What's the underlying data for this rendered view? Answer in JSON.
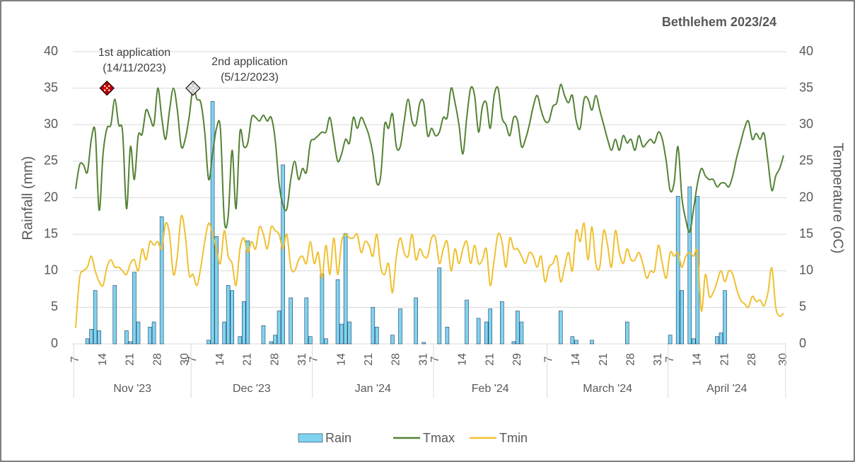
{
  "chart_data": {
    "type": "bar_line",
    "title": "Bethlehem 2023/24",
    "y_label": "Rainfall (mm)",
    "y2_label": "Temperature (oC)",
    "ylim": [
      0,
      40
    ],
    "yticks": [
      0,
      5,
      10,
      15,
      20,
      25,
      30,
      35,
      40
    ],
    "y2lim": [
      0,
      40
    ],
    "y2ticks": [
      0,
      5,
      10,
      15,
      20,
      25,
      30,
      35,
      40
    ],
    "grid": true,
    "legend": "bottom",
    "groups": [
      {
        "label": "Nov '23",
        "categories": [
          "7",
          null,
          null,
          null,
          null,
          null,
          null,
          "14",
          null,
          null,
          null,
          null,
          null,
          null,
          "21",
          null,
          null,
          null,
          null,
          null,
          null,
          "28",
          null,
          null,
          null,
          null,
          null,
          null,
          "30",
          null
        ]
      },
      {
        "label": "Dec '23",
        "categories": [
          "7",
          null,
          null,
          null,
          null,
          null,
          null,
          "14",
          null,
          null,
          null,
          null,
          null,
          null,
          "21",
          null,
          null,
          null,
          null,
          null,
          null,
          "28",
          null,
          null,
          null,
          null,
          null,
          null,
          "31",
          null,
          null
        ]
      },
      {
        "label": "Jan '24",
        "categories": [
          "7",
          null,
          null,
          null,
          null,
          null,
          null,
          "14",
          null,
          null,
          null,
          null,
          null,
          null,
          "21",
          null,
          null,
          null,
          null,
          null,
          null,
          "28",
          null,
          null,
          null,
          null,
          null,
          null,
          "31",
          null,
          null
        ]
      },
      {
        "label": "Feb '24",
        "categories": [
          "7",
          null,
          null,
          null,
          null,
          null,
          null,
          "14",
          null,
          null,
          null,
          null,
          null,
          null,
          "21",
          null,
          null,
          null,
          null,
          null,
          null,
          "29",
          null,
          null,
          null,
          null,
          null,
          null,
          null
        ]
      },
      {
        "label": "March '24",
        "categories": [
          "7",
          null,
          null,
          null,
          null,
          null,
          null,
          "14",
          null,
          null,
          null,
          null,
          null,
          null,
          "21",
          null,
          null,
          null,
          null,
          null,
          null,
          "28",
          null,
          null,
          null,
          null,
          null,
          null,
          "31",
          null,
          null
        ]
      },
      {
        "label": "April '24",
        "categories": [
          "7",
          null,
          null,
          null,
          null,
          null,
          null,
          "14",
          null,
          null,
          null,
          null,
          null,
          null,
          "21",
          null,
          null,
          null,
          null,
          null,
          null,
          "28",
          null,
          null,
          null,
          null,
          null,
          null,
          null,
          "30"
        ]
      }
    ],
    "series": [
      {
        "name": "Rain",
        "type": "bar",
        "color": "#7fd3f0",
        "values": [
          0,
          0,
          0,
          0.7,
          2.0,
          7.3,
          1.8,
          0,
          0,
          0,
          8.0,
          0,
          0,
          1.8,
          0.3,
          9.8,
          3.0,
          0,
          0,
          2.3,
          3.0,
          0,
          17.4,
          0,
          0,
          0,
          0,
          0,
          0,
          0,
          0,
          0,
          0,
          0,
          0.5,
          33.2,
          14.7,
          0,
          3.0,
          8.0,
          7.3,
          0,
          1.0,
          5.8,
          14.1,
          0,
          0,
          0,
          2.5,
          0,
          0.3,
          1.2,
          4.5,
          24.5,
          0,
          6.3,
          0,
          0,
          0,
          6.3,
          1.0,
          0,
          0,
          9.6,
          0.7,
          0,
          0,
          8.8,
          2.7,
          15.1,
          3.0,
          0,
          0,
          0,
          0,
          0,
          5.0,
          2.3,
          0,
          0,
          0,
          1.2,
          0,
          4.8,
          0,
          0,
          0,
          6.3,
          0,
          0.2,
          0,
          0,
          0,
          10.4,
          0,
          2.3,
          0,
          0,
          0,
          0,
          6.0,
          0,
          0,
          3.5,
          0,
          3.0,
          4.8,
          0,
          0,
          5.8,
          0,
          0,
          0.3,
          4.5,
          3.0,
          0,
          0,
          0,
          0,
          0,
          0,
          0,
          0,
          0,
          4.5,
          0,
          0,
          1.0,
          0.5,
          0,
          0,
          0,
          0.5,
          0,
          0,
          0,
          0,
          0,
          0,
          0,
          0,
          3.0,
          0,
          0,
          0,
          0,
          0,
          0,
          0,
          0,
          0,
          0,
          1.2,
          0,
          20.2,
          7.3,
          0,
          21.5,
          0.7,
          20.2,
          0,
          0,
          0,
          0,
          1.0,
          1.5,
          7.3,
          0,
          0,
          0,
          0,
          0,
          0,
          0,
          0,
          0,
          0,
          0,
          0,
          0,
          0,
          0
        ]
      },
      {
        "name": "Tmax",
        "type": "line",
        "axis": "y2",
        "color": "#548235",
        "values": [
          21.2,
          24.5,
          24.5,
          23.5,
          28,
          29,
          18.3,
          26,
          29.5,
          30,
          33.5,
          30,
          29,
          18.5,
          27,
          22.5,
          28.5,
          28.7,
          32,
          31,
          30,
          35,
          31,
          28,
          32,
          35,
          32,
          27,
          28,
          31,
          35,
          33.5,
          33,
          29,
          22.5,
          26,
          29.5,
          29.5,
          17,
          17.5,
          26.5,
          18.5,
          29,
          27,
          27.5,
          31,
          31,
          30.5,
          31.3,
          30.5,
          31,
          28,
          22,
          19,
          18.5,
          22.5,
          25,
          22.5,
          24,
          23.5,
          27.5,
          28,
          28.5,
          29,
          29,
          31,
          28,
          25,
          26,
          28,
          27.5,
          31,
          29.5,
          31,
          30,
          28.5,
          26,
          22,
          23,
          30,
          29.5,
          31.5,
          27,
          27,
          30.5,
          33.5,
          30.5,
          30,
          33,
          33,
          28.5,
          29.5,
          28.5,
          29,
          31,
          31,
          35,
          33,
          30,
          26,
          31,
          35,
          34,
          29,
          32.5,
          33,
          29.5,
          34,
          35,
          31,
          30,
          28.5,
          31,
          30.5,
          27,
          28,
          30,
          32.5,
          34,
          32,
          30.5,
          30.5,
          32.5,
          33,
          35.5,
          34,
          33,
          34,
          30.5,
          29.5,
          33.5,
          33.5,
          32,
          34,
          32,
          30,
          28,
          26.5,
          28,
          26.5,
          28.5,
          27.5,
          28,
          26.5,
          28.5,
          27,
          27.5,
          28,
          27.5,
          29,
          28,
          25,
          21,
          22,
          27,
          20,
          17,
          15.3,
          18.5,
          22,
          24,
          23,
          22.5,
          22.5,
          21.5,
          22,
          22,
          21.5,
          23,
          25.5,
          27.5,
          29.5,
          30.5,
          28,
          28.8,
          28,
          28.8,
          25,
          21,
          23,
          24,
          25.8
        ]
      },
      {
        "name": "Tmin",
        "type": "line",
        "axis": "y2",
        "color": "#f0c030",
        "values": [
          2.2,
          9,
          10,
          10.5,
          12,
          10,
          8.5,
          8,
          10.5,
          11.5,
          10.5,
          10.5,
          10,
          9.5,
          11,
          11.5,
          10,
          13,
          11.5,
          14,
          13.5,
          14,
          13,
          16.5,
          15,
          9.5,
          12,
          17.5,
          15,
          9.5,
          9.5,
          8,
          10.5,
          14,
          16.5,
          15,
          13,
          11,
          15.5,
          12,
          11,
          8,
          13,
          14.5,
          12.5,
          14,
          13,
          16,
          15,
          13,
          16,
          15.5,
          15,
          13,
          15,
          10.5,
          10,
          11.5,
          12,
          11,
          14,
          11,
          12.5,
          9,
          13.5,
          9.5,
          14.5,
          9.5,
          14,
          15,
          14.5,
          14.5,
          15,
          12.5,
          14,
          13.5,
          12,
          15,
          10.5,
          9.5,
          11,
          7,
          12,
          14.5,
          12.5,
          12,
          15,
          11.5,
          13,
          12,
          12,
          14.5,
          14.5,
          11,
          13,
          14,
          10,
          13,
          11,
          13,
          14,
          11,
          13.5,
          11,
          11.5,
          13,
          8,
          11.5,
          15,
          14,
          10.5,
          14.5,
          13,
          13,
          12,
          11,
          12.5,
          12,
          10.5,
          12,
          8.5,
          10.5,
          11,
          12,
          8.5,
          10.5,
          12.5,
          10,
          15.5,
          14,
          16.5,
          11.5,
          16,
          11,
          10.5,
          15.5,
          13.5,
          10.5,
          15.5,
          12.5,
          11,
          13,
          11.5,
          11.5,
          12.5,
          11,
          9,
          10,
          10,
          13.5,
          11,
          9,
          12.5,
          12,
          12.5,
          10.5,
          12,
          12.5,
          12,
          12.5,
          4.5,
          9.5,
          6.5,
          7,
          8.5,
          10,
          8.5,
          10,
          9.5,
          7.5,
          6,
          5.5,
          5,
          6.5,
          5.8,
          6,
          5.2,
          7,
          10.4,
          5,
          3.8,
          4.2
        ]
      }
    ],
    "annotations": [
      {
        "text": "1st application",
        "date": "(14/11/2023)",
        "at": 8,
        "y": 35,
        "color": "#c00000"
      },
      {
        "text": "2nd application",
        "date": "(5/12/2023)",
        "at": 30,
        "y": 35,
        "color": "#d0d0d0"
      }
    ]
  }
}
